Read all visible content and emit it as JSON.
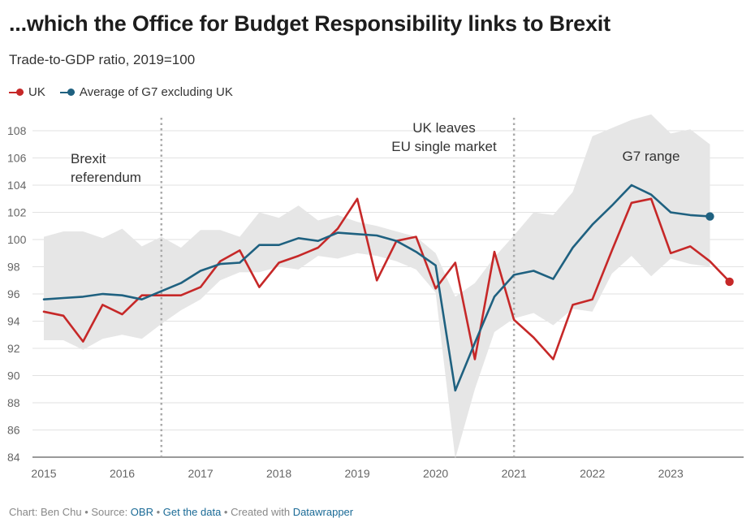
{
  "title": "...which the Office for Budget Responsibility links to Brexit",
  "subtitle": "Trade-to-GDP ratio, 2019=100",
  "footer": {
    "prefix": "Chart: Ben Chu • Source: ",
    "source_link": "OBR",
    "sep1": " • ",
    "data_link": "Get the data",
    "sep2": " • Created with ",
    "tool_link": "Datawrapper"
  },
  "colors": {
    "uk": "#c62828",
    "g7": "#1f6180",
    "range": "#e6e6e6"
  },
  "chart_data": {
    "type": "line",
    "ylim": [
      84,
      108
    ],
    "ylabel": "",
    "xlabel": "",
    "x_ticks": [
      "2015",
      "2016",
      "2017",
      "2018",
      "2019",
      "2020",
      "2021",
      "2022",
      "2023"
    ],
    "y_ticks": [
      84,
      86,
      88,
      90,
      92,
      94,
      96,
      98,
      100,
      102,
      104,
      106,
      108
    ],
    "x": [
      2015.0,
      2015.25,
      2015.5,
      2015.75,
      2016.0,
      2016.25,
      2016.5,
      2016.75,
      2017.0,
      2017.25,
      2017.5,
      2017.75,
      2018.0,
      2018.25,
      2018.5,
      2018.75,
      2019.0,
      2019.25,
      2019.5,
      2019.75,
      2020.0,
      2020.25,
      2020.5,
      2020.75,
      2021.0,
      2021.25,
      2021.5,
      2021.75,
      2022.0,
      2022.25,
      2022.5,
      2022.75,
      2023.0,
      2023.25,
      2023.5,
      2023.75
    ],
    "series": [
      {
        "name": "UK",
        "values": [
          94.7,
          94.4,
          92.5,
          95.2,
          94.5,
          95.9,
          95.9,
          95.9,
          96.5,
          98.4,
          99.2,
          96.5,
          98.3,
          98.8,
          99.4,
          100.8,
          103.0,
          97.0,
          99.9,
          100.2,
          96.4,
          98.3,
          91.2,
          99.1,
          94.1,
          92.8,
          91.2,
          95.2,
          95.6,
          99.2,
          102.7,
          103.0,
          99.0,
          99.5,
          98.4,
          96.9
        ]
      },
      {
        "name": "Average of G7 excluding UK",
        "values": [
          95.6,
          95.7,
          95.8,
          96.0,
          95.9,
          95.6,
          96.2,
          96.8,
          97.7,
          98.2,
          98.3,
          99.6,
          99.6,
          100.1,
          99.9,
          100.5,
          100.4,
          100.3,
          99.9,
          99.1,
          98.1,
          88.9,
          92.4,
          95.8,
          97.4,
          97.7,
          97.1,
          99.4,
          101.1,
          102.5,
          104.0,
          103.3,
          102.0,
          101.8,
          101.7,
          null
        ]
      }
    ],
    "range_band": {
      "name": "G7 range",
      "x": [
        2015.0,
        2015.25,
        2015.5,
        2015.75,
        2016.0,
        2016.25,
        2016.5,
        2016.75,
        2017.0,
        2017.25,
        2017.5,
        2017.75,
        2018.0,
        2018.25,
        2018.5,
        2018.75,
        2019.0,
        2019.25,
        2019.5,
        2019.75,
        2020.0,
        2020.25,
        2020.5,
        2020.75,
        2021.0,
        2021.25,
        2021.5,
        2021.75,
        2022.0,
        2022.25,
        2022.5,
        2022.75,
        2023.0,
        2023.25,
        2023.5
      ],
      "high": [
        100.2,
        100.6,
        100.6,
        100.1,
        100.8,
        99.5,
        100.2,
        99.4,
        100.7,
        100.7,
        100.2,
        102.0,
        101.6,
        102.5,
        101.4,
        101.8,
        101.3,
        101.0,
        100.6,
        100.2,
        99.0,
        95.8,
        96.8,
        98.7,
        100.3,
        102.0,
        101.8,
        103.5,
        107.6,
        108.2,
        108.8,
        109.2,
        107.8,
        108.1,
        107.0
      ],
      "low": [
        92.6,
        92.6,
        91.9,
        92.7,
        93.0,
        92.7,
        93.8,
        94.8,
        95.6,
        97.0,
        97.6,
        97.6,
        98.0,
        97.8,
        98.8,
        98.6,
        99.0,
        98.8,
        98.4,
        97.8,
        96.1,
        83.9,
        89.0,
        93.2,
        94.2,
        94.6,
        93.7,
        94.9,
        94.7,
        97.5,
        98.8,
        97.3,
        98.6,
        98.2,
        98.0
      ]
    },
    "annotations": [
      {
        "lines": [
          "Brexit",
          "referendum"
        ],
        "x": 2016.5
      },
      {
        "lines": [
          "UK leaves",
          "EU single market"
        ],
        "x": 2021.0
      },
      {
        "lines": [
          "G7 range"
        ],
        "x": 2022.75
      }
    ]
  }
}
